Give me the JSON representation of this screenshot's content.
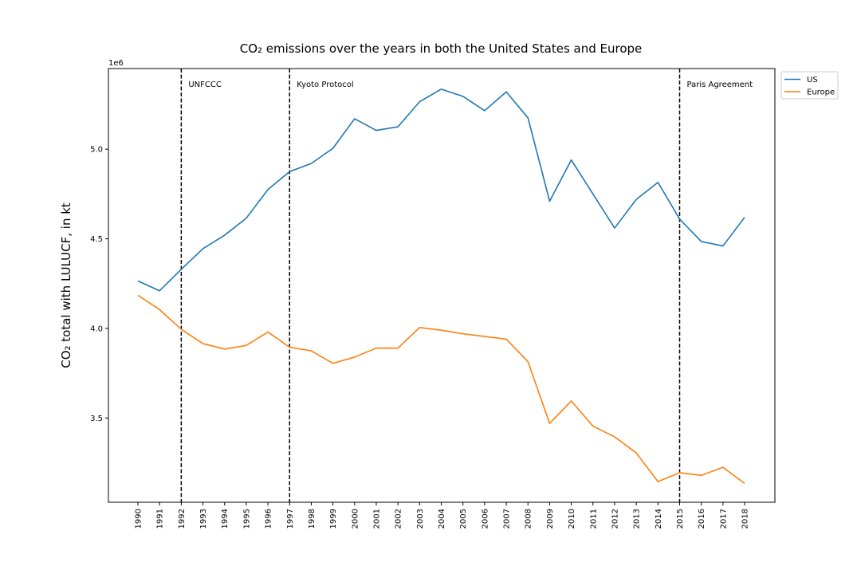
{
  "chart_data": {
    "type": "line",
    "title": "CO₂ emissions over the years in both the United States and Europe",
    "xlabel": "",
    "ylabel": "CO₂ total with LULUCF, in kt",
    "y_offset_text": "1e6",
    "ylim": [
      3.03,
      5.45
    ],
    "yticks": [
      3.5,
      4.0,
      4.5,
      5.0
    ],
    "ytick_labels": [
      "3.5",
      "4.0",
      "4.5",
      "5.0"
    ],
    "x": [
      1990,
      1991,
      1992,
      1993,
      1994,
      1995,
      1996,
      1997,
      1998,
      1999,
      2000,
      2001,
      2002,
      2003,
      2004,
      2005,
      2006,
      2007,
      2008,
      2009,
      2010,
      2011,
      2012,
      2013,
      2014,
      2015,
      2016,
      2017,
      2018
    ],
    "x_tick_labels": [
      "1990",
      "1991",
      "1992",
      "1993",
      "1994",
      "1995",
      "1996",
      "1997",
      "1998",
      "1999",
      "2000",
      "2001",
      "2002",
      "2003",
      "2004",
      "2005",
      "2006",
      "2007",
      "2008",
      "2009",
      "2010",
      "2011",
      "2012",
      "2013",
      "2014",
      "2015",
      "2016",
      "2017",
      "2018"
    ],
    "series": [
      {
        "name": "US",
        "color": "#1f77b4",
        "values": [
          4.265,
          4.21,
          4.33,
          4.445,
          4.52,
          4.615,
          4.775,
          4.875,
          4.92,
          5.005,
          5.17,
          5.105,
          5.125,
          5.265,
          5.335,
          5.295,
          5.215,
          5.32,
          5.175,
          4.71,
          4.94,
          4.75,
          4.56,
          4.72,
          4.815,
          4.61,
          4.485,
          4.46,
          4.62
        ]
      },
      {
        "name": "Europe",
        "color": "#ff7f0e",
        "values": [
          4.185,
          4.105,
          3.995,
          3.915,
          3.885,
          3.905,
          3.98,
          3.895,
          3.875,
          3.805,
          3.84,
          3.89,
          3.89,
          4.005,
          3.99,
          3.97,
          3.955,
          3.94,
          3.815,
          3.47,
          3.595,
          3.455,
          3.395,
          3.305,
          3.145,
          3.195,
          3.18,
          3.225,
          3.135
        ]
      }
    ],
    "events": [
      {
        "year": 1992,
        "label": "UNFCCC"
      },
      {
        "year": 1997,
        "label": "Kyoto Protocol"
      },
      {
        "year": 2015,
        "label": "Paris Agreement"
      }
    ],
    "legend_position": "outside top-right",
    "grid": false
  }
}
